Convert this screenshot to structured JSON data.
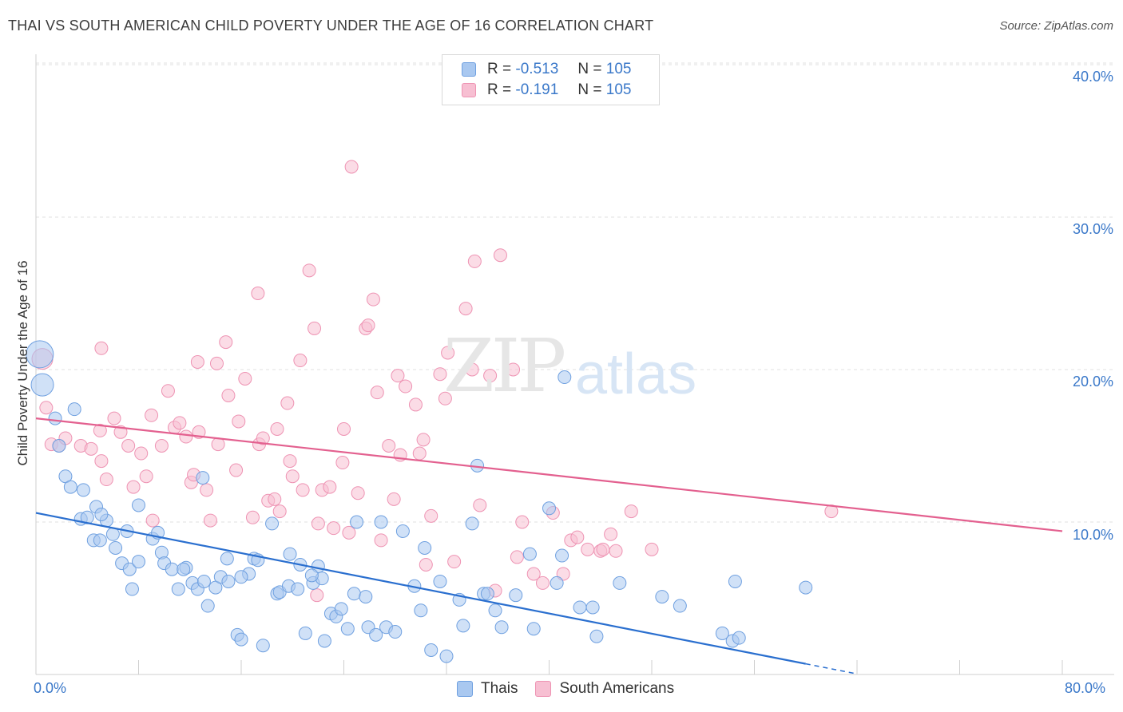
{
  "title": "THAI VS SOUTH AMERICAN CHILD POVERTY UNDER THE AGE OF 16 CORRELATION CHART",
  "source": "Source: ZipAtlas.com",
  "watermark": {
    "zip": "ZIP",
    "atlas": "atlas"
  },
  "colors": {
    "thais_fill": "#a9c8f0",
    "thais_stroke": "#6fa0e0",
    "thais_line": "#2a6fcf",
    "south_fill": "#f7bfd2",
    "south_stroke": "#ee93b3",
    "south_line": "#e3608f",
    "tick_text": "#3a78c9",
    "grid": "#e0e0e0"
  },
  "legend_top": [
    {
      "r_label": "R =",
      "r_value": "-0.513",
      "n_label": "N =",
      "n_value": "105"
    },
    {
      "r_label": "R =",
      "r_value": "-0.191",
      "n_label": "N =",
      "n_value": "105"
    }
  ],
  "legend_bottom": [
    "Thais",
    "South Americans"
  ],
  "chart_data": {
    "type": "scatter",
    "title": "THAI VS SOUTH AMERICAN CHILD POVERTY UNDER THE AGE OF 16 CORRELATION CHART",
    "xlabel": "",
    "ylabel": "Child Poverty Under the Age of 16",
    "xlim": [
      0,
      80
    ],
    "ylim": [
      0,
      40
    ],
    "x_tick_labels": [
      "0.0%",
      "80.0%"
    ],
    "y_ticks": [
      10,
      20,
      30,
      40
    ],
    "y_tick_labels": [
      "10.0%",
      "20.0%",
      "30.0%",
      "40.0%"
    ],
    "grid": "horizontal dashed",
    "series": [
      {
        "name": "Thais",
        "R": -0.513,
        "N": 105,
        "trend": {
          "x0": 0,
          "y0": 10.6,
          "x1": 60,
          "y1": 0.7,
          "dash_to_x": 64
        },
        "points": [
          [
            0.3,
            21.0
          ],
          [
            0.5,
            19.0
          ],
          [
            1.5,
            16.8
          ],
          [
            1.8,
            15.0
          ],
          [
            3.0,
            17.4
          ],
          [
            2.3,
            13.0
          ],
          [
            2.7,
            12.3
          ],
          [
            4.7,
            11.0
          ],
          [
            3.5,
            10.2
          ],
          [
            4.0,
            10.3
          ],
          [
            5.5,
            10.1
          ],
          [
            6.0,
            9.2
          ],
          [
            7.1,
            9.4
          ],
          [
            8.0,
            11.1
          ],
          [
            9.1,
            8.9
          ],
          [
            4.5,
            8.8
          ],
          [
            5.0,
            8.8
          ],
          [
            6.2,
            8.3
          ],
          [
            6.7,
            7.3
          ],
          [
            7.3,
            6.9
          ],
          [
            8.0,
            7.4
          ],
          [
            9.8,
            8.0
          ],
          [
            10.0,
            7.3
          ],
          [
            10.6,
            6.9
          ],
          [
            11.1,
            5.6
          ],
          [
            11.7,
            7.0
          ],
          [
            12.2,
            6.0
          ],
          [
            12.6,
            5.6
          ],
          [
            13.1,
            6.1
          ],
          [
            13.4,
            4.5
          ],
          [
            14.0,
            5.7
          ],
          [
            14.4,
            6.4
          ],
          [
            14.9,
            7.6
          ],
          [
            15.0,
            6.1
          ],
          [
            15.7,
            2.6
          ],
          [
            16.0,
            2.3
          ],
          [
            16.6,
            6.6
          ],
          [
            17.0,
            7.6
          ],
          [
            17.3,
            7.5
          ],
          [
            17.7,
            1.9
          ],
          [
            18.4,
            9.9
          ],
          [
            18.8,
            5.3
          ],
          [
            19.0,
            5.4
          ],
          [
            19.7,
            5.8
          ],
          [
            19.8,
            7.9
          ],
          [
            20.4,
            5.6
          ],
          [
            20.6,
            7.2
          ],
          [
            21.0,
            2.7
          ],
          [
            21.6,
            6.0
          ],
          [
            22.0,
            7.1
          ],
          [
            22.3,
            6.3
          ],
          [
            22.5,
            2.2
          ],
          [
            23.0,
            4.0
          ],
          [
            23.4,
            3.8
          ],
          [
            23.8,
            4.3
          ],
          [
            24.3,
            3.0
          ],
          [
            24.8,
            5.3
          ],
          [
            25.0,
            10.0
          ],
          [
            25.7,
            5.1
          ],
          [
            25.9,
            3.1
          ],
          [
            26.5,
            2.6
          ],
          [
            26.9,
            10.0
          ],
          [
            27.3,
            3.1
          ],
          [
            28.0,
            2.8
          ],
          [
            28.6,
            9.4
          ],
          [
            29.5,
            5.8
          ],
          [
            30.0,
            4.2
          ],
          [
            30.3,
            8.3
          ],
          [
            30.8,
            1.6
          ],
          [
            31.5,
            6.1
          ],
          [
            32.0,
            1.2
          ],
          [
            33.0,
            4.9
          ],
          [
            33.3,
            3.2
          ],
          [
            34.0,
            9.9
          ],
          [
            34.4,
            13.7
          ],
          [
            34.9,
            5.3
          ],
          [
            35.2,
            5.3
          ],
          [
            35.8,
            4.2
          ],
          [
            36.3,
            3.1
          ],
          [
            37.4,
            5.2
          ],
          [
            38.5,
            7.9
          ],
          [
            38.8,
            3.0
          ],
          [
            40.0,
            10.9
          ],
          [
            40.6,
            6.0
          ],
          [
            41.0,
            7.8
          ],
          [
            41.2,
            19.5
          ],
          [
            42.4,
            4.4
          ],
          [
            43.4,
            4.4
          ],
          [
            43.7,
            2.5
          ],
          [
            45.5,
            6.0
          ],
          [
            48.8,
            5.1
          ],
          [
            50.2,
            4.5
          ],
          [
            53.5,
            2.7
          ],
          [
            54.3,
            2.2
          ],
          [
            54.8,
            2.4
          ],
          [
            54.5,
            6.1
          ],
          [
            60.0,
            5.7
          ],
          [
            13.0,
            12.9
          ],
          [
            9.5,
            9.3
          ],
          [
            7.5,
            5.6
          ],
          [
            11.5,
            6.9
          ],
          [
            16.0,
            6.4
          ],
          [
            3.7,
            12.1
          ],
          [
            21.5,
            6.5
          ],
          [
            5.1,
            10.5
          ]
        ]
      },
      {
        "name": "South Americans",
        "R": -0.191,
        "N": 105,
        "trend": {
          "x0": 0,
          "y0": 16.8,
          "x1": 80,
          "y1": 9.4
        },
        "points": [
          [
            0.5,
            20.7
          ],
          [
            0.8,
            17.5
          ],
          [
            1.2,
            15.1
          ],
          [
            1.8,
            15.0
          ],
          [
            2.3,
            15.5
          ],
          [
            3.5,
            15.0
          ],
          [
            4.3,
            14.8
          ],
          [
            5.0,
            16.0
          ],
          [
            5.1,
            14.0
          ],
          [
            5.5,
            12.8
          ],
          [
            5.1,
            21.4
          ],
          [
            6.1,
            16.8
          ],
          [
            6.6,
            15.9
          ],
          [
            7.2,
            15.0
          ],
          [
            7.6,
            12.3
          ],
          [
            8.2,
            14.5
          ],
          [
            8.6,
            13.0
          ],
          [
            9.1,
            10.1
          ],
          [
            9.8,
            15.0
          ],
          [
            10.3,
            18.6
          ],
          [
            10.8,
            16.2
          ],
          [
            11.2,
            16.5
          ],
          [
            11.7,
            15.6
          ],
          [
            12.1,
            12.6
          ],
          [
            12.3,
            13.1
          ],
          [
            12.7,
            15.9
          ],
          [
            13.3,
            12.1
          ],
          [
            13.6,
            10.1
          ],
          [
            14.1,
            20.4
          ],
          [
            14.8,
            21.8
          ],
          [
            14.2,
            15.1
          ],
          [
            15.0,
            18.3
          ],
          [
            15.6,
            13.4
          ],
          [
            15.8,
            16.6
          ],
          [
            16.3,
            19.4
          ],
          [
            16.9,
            10.3
          ],
          [
            17.3,
            25.0
          ],
          [
            17.4,
            15.1
          ],
          [
            17.7,
            15.5
          ],
          [
            18.1,
            11.4
          ],
          [
            18.6,
            11.5
          ],
          [
            18.8,
            16.1
          ],
          [
            19.0,
            10.7
          ],
          [
            19.6,
            17.8
          ],
          [
            19.8,
            14.0
          ],
          [
            20.0,
            13.0
          ],
          [
            20.6,
            20.6
          ],
          [
            20.8,
            12.1
          ],
          [
            21.3,
            26.5
          ],
          [
            21.7,
            22.7
          ],
          [
            21.9,
            5.2
          ],
          [
            22.3,
            12.1
          ],
          [
            22.9,
            12.3
          ],
          [
            22.0,
            9.9
          ],
          [
            23.2,
            9.6
          ],
          [
            23.9,
            13.9
          ],
          [
            24.0,
            16.1
          ],
          [
            24.4,
            9.3
          ],
          [
            24.6,
            33.3
          ],
          [
            25.1,
            11.9
          ],
          [
            25.7,
            22.7
          ],
          [
            25.9,
            22.9
          ],
          [
            26.3,
            24.6
          ],
          [
            26.6,
            18.5
          ],
          [
            26.9,
            8.8
          ],
          [
            27.5,
            15.0
          ],
          [
            27.9,
            11.5
          ],
          [
            28.2,
            19.6
          ],
          [
            28.4,
            14.4
          ],
          [
            28.8,
            18.9
          ],
          [
            29.6,
            17.7
          ],
          [
            29.9,
            14.5
          ],
          [
            30.2,
            15.4
          ],
          [
            30.4,
            7.2
          ],
          [
            30.8,
            10.4
          ],
          [
            31.5,
            19.7
          ],
          [
            31.9,
            18.1
          ],
          [
            32.1,
            21.1
          ],
          [
            32.6,
            7.4
          ],
          [
            33.5,
            24.0
          ],
          [
            34.0,
            20.0
          ],
          [
            34.2,
            27.1
          ],
          [
            34.6,
            11.1
          ],
          [
            35.4,
            19.6
          ],
          [
            35.8,
            5.5
          ],
          [
            36.2,
            27.5
          ],
          [
            37.2,
            20.0
          ],
          [
            37.5,
            7.7
          ],
          [
            37.9,
            10.0
          ],
          [
            38.8,
            6.6
          ],
          [
            39.5,
            6.0
          ],
          [
            40.3,
            10.6
          ],
          [
            41.1,
            6.6
          ],
          [
            41.7,
            8.8
          ],
          [
            42.2,
            9.0
          ],
          [
            43.0,
            8.2
          ],
          [
            44.0,
            8.1
          ],
          [
            44.2,
            8.2
          ],
          [
            44.8,
            9.2
          ],
          [
            45.2,
            8.1
          ],
          [
            46.4,
            10.7
          ],
          [
            48.0,
            8.2
          ],
          [
            62.0,
            10.7
          ],
          [
            12.6,
            20.5
          ],
          [
            9.0,
            17.0
          ]
        ]
      }
    ]
  }
}
